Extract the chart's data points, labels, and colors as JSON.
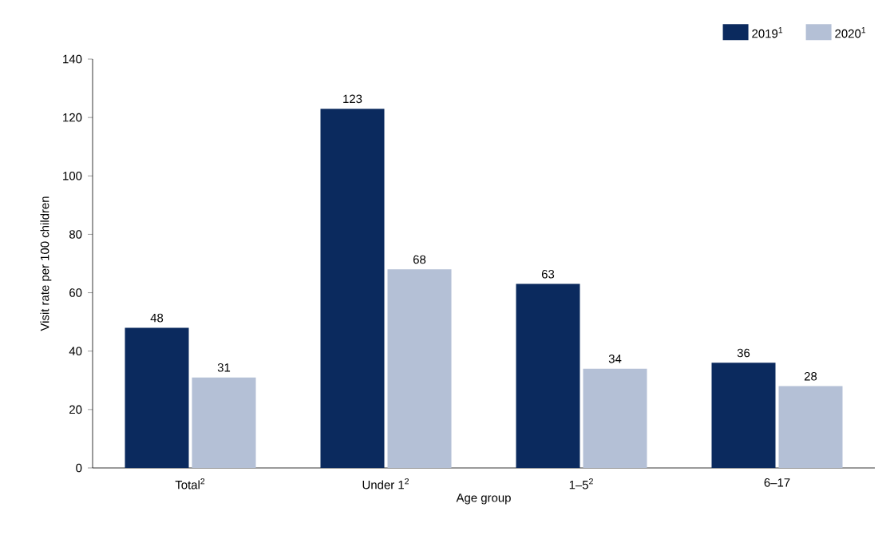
{
  "chart_data": {
    "type": "bar",
    "categories": [
      "Total$^{2}$",
      "Under 1$^{2}$",
      "1–5$^{2}$",
      "6–17"
    ],
    "series": [
      {
        "name": "2019$^{1}$",
        "color": "#0b2a5e",
        "values": [
          48,
          123,
          63,
          36
        ]
      },
      {
        "name": "2020$^{1}$",
        "color": "#b4c0d6",
        "values": [
          31,
          68,
          34,
          28
        ]
      }
    ],
    "xlabel": "Age group",
    "ylabel": "Visit rate per 100 children",
    "ylim": [
      0,
      140
    ],
    "yticks": [
      0,
      20,
      40,
      60,
      80,
      100,
      120,
      140
    ],
    "data_labels": true,
    "legend": "top right"
  }
}
